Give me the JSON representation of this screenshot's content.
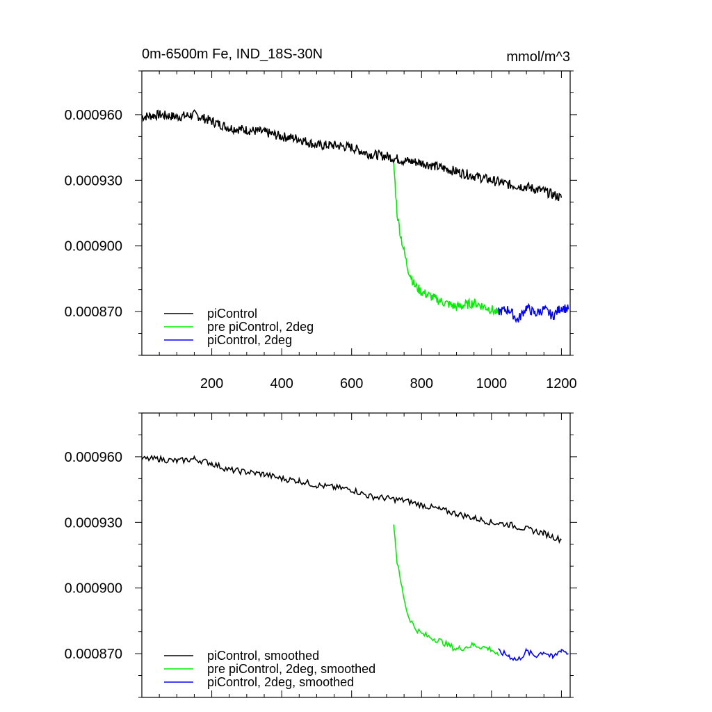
{
  "title": "0m-6500m Fe, IND_18S-30N",
  "units": "mmol/m^3",
  "chart_data": [
    {
      "type": "line",
      "panel": "top",
      "xlim": [
        0,
        1225
      ],
      "ylim": [
        0.00085,
        0.00098
      ],
      "yticks": [
        0.00096,
        0.00093,
        0.0009,
        0.00087
      ],
      "ytick_labels": [
        "0.000960",
        "0.000930",
        "0.000900",
        "0.000870"
      ],
      "xticks": [
        200,
        400,
        600,
        800,
        1000,
        1200
      ],
      "xtick_labels": [
        "200",
        "400",
        "600",
        "800",
        "1000",
        "1200"
      ],
      "legend_position": "bottom-left",
      "series": [
        {
          "name": "piControl",
          "color": "#000000",
          "x": [
            0,
            50,
            100,
            150,
            200,
            250,
            300,
            350,
            400,
            450,
            500,
            550,
            600,
            650,
            700,
            750,
            800,
            850,
            900,
            950,
            1000,
            1050,
            1100,
            1150,
            1200
          ],
          "y": [
            0.000959,
            0.00096,
            0.000959,
            0.00096,
            0.000957,
            0.000954,
            0.000953,
            0.000952,
            0.00095,
            0.000949,
            0.000946,
            0.000946,
            0.000945,
            0.000942,
            0.000941,
            0.000939,
            0.000938,
            0.000936,
            0.000934,
            0.000932,
            0.00093,
            0.000928,
            0.000927,
            0.000925,
            0.000922
          ]
        },
        {
          "name": "pre piControl, 2deg",
          "color": "#00ee00",
          "x": [
            720,
            730,
            740,
            760,
            780,
            800,
            850,
            900,
            950,
            1000,
            1020
          ],
          "y": [
            0.000938,
            0.000915,
            0.000905,
            0.00089,
            0.000882,
            0.000879,
            0.000875,
            0.000872,
            0.000874,
            0.000871,
            0.000869
          ]
        },
        {
          "name": "piControl, 2deg",
          "color": "#0000ff",
          "x": [
            1020,
            1050,
            1075,
            1100,
            1125,
            1150,
            1175,
            1200,
            1220
          ],
          "y": [
            0.00087,
            0.000871,
            0.000866,
            0.000872,
            0.000869,
            0.000871,
            0.000868,
            0.000872,
            0.000871
          ]
        }
      ]
    },
    {
      "type": "line",
      "panel": "bottom",
      "xlim": [
        0,
        1225
      ],
      "ylim": [
        0.00085,
        0.00098
      ],
      "yticks": [
        0.00096,
        0.00093,
        0.0009,
        0.00087
      ],
      "ytick_labels": [
        "0.000960",
        "0.000930",
        "0.000900",
        "0.000870"
      ],
      "legend_position": "bottom-left",
      "series": [
        {
          "name": "piControl, smoothed",
          "color": "#000000",
          "x": [
            0,
            50,
            100,
            150,
            200,
            250,
            300,
            350,
            400,
            450,
            500,
            550,
            600,
            650,
            700,
            750,
            800,
            850,
            900,
            950,
            1000,
            1050,
            1100,
            1150,
            1200
          ],
          "y": [
            0.000959,
            0.000959,
            0.000958,
            0.000959,
            0.000957,
            0.000954,
            0.000953,
            0.000952,
            0.00095,
            0.000949,
            0.000947,
            0.000946,
            0.000945,
            0.000942,
            0.000941,
            0.00094,
            0.000938,
            0.000936,
            0.000934,
            0.000932,
            0.00093,
            0.000929,
            0.000927,
            0.000925,
            0.000922
          ]
        },
        {
          "name": "pre piControl, 2deg, smoothed",
          "color": "#00ee00",
          "x": [
            720,
            730,
            740,
            760,
            780,
            800,
            850,
            900,
            950,
            1000,
            1020
          ],
          "y": [
            0.00093,
            0.000912,
            0.000903,
            0.000888,
            0.000882,
            0.000879,
            0.000876,
            0.000872,
            0.000874,
            0.000872,
            0.000869
          ]
        },
        {
          "name": "piControl, 2deg, smoothed",
          "color": "#0000ff",
          "x": [
            1020,
            1050,
            1075,
            1100,
            1125,
            1150,
            1175,
            1200,
            1220
          ],
          "y": [
            0.000871,
            0.000869,
            0.000867,
            0.000871,
            0.000869,
            0.000871,
            0.000868,
            0.000872,
            0.00087
          ]
        }
      ]
    }
  ]
}
